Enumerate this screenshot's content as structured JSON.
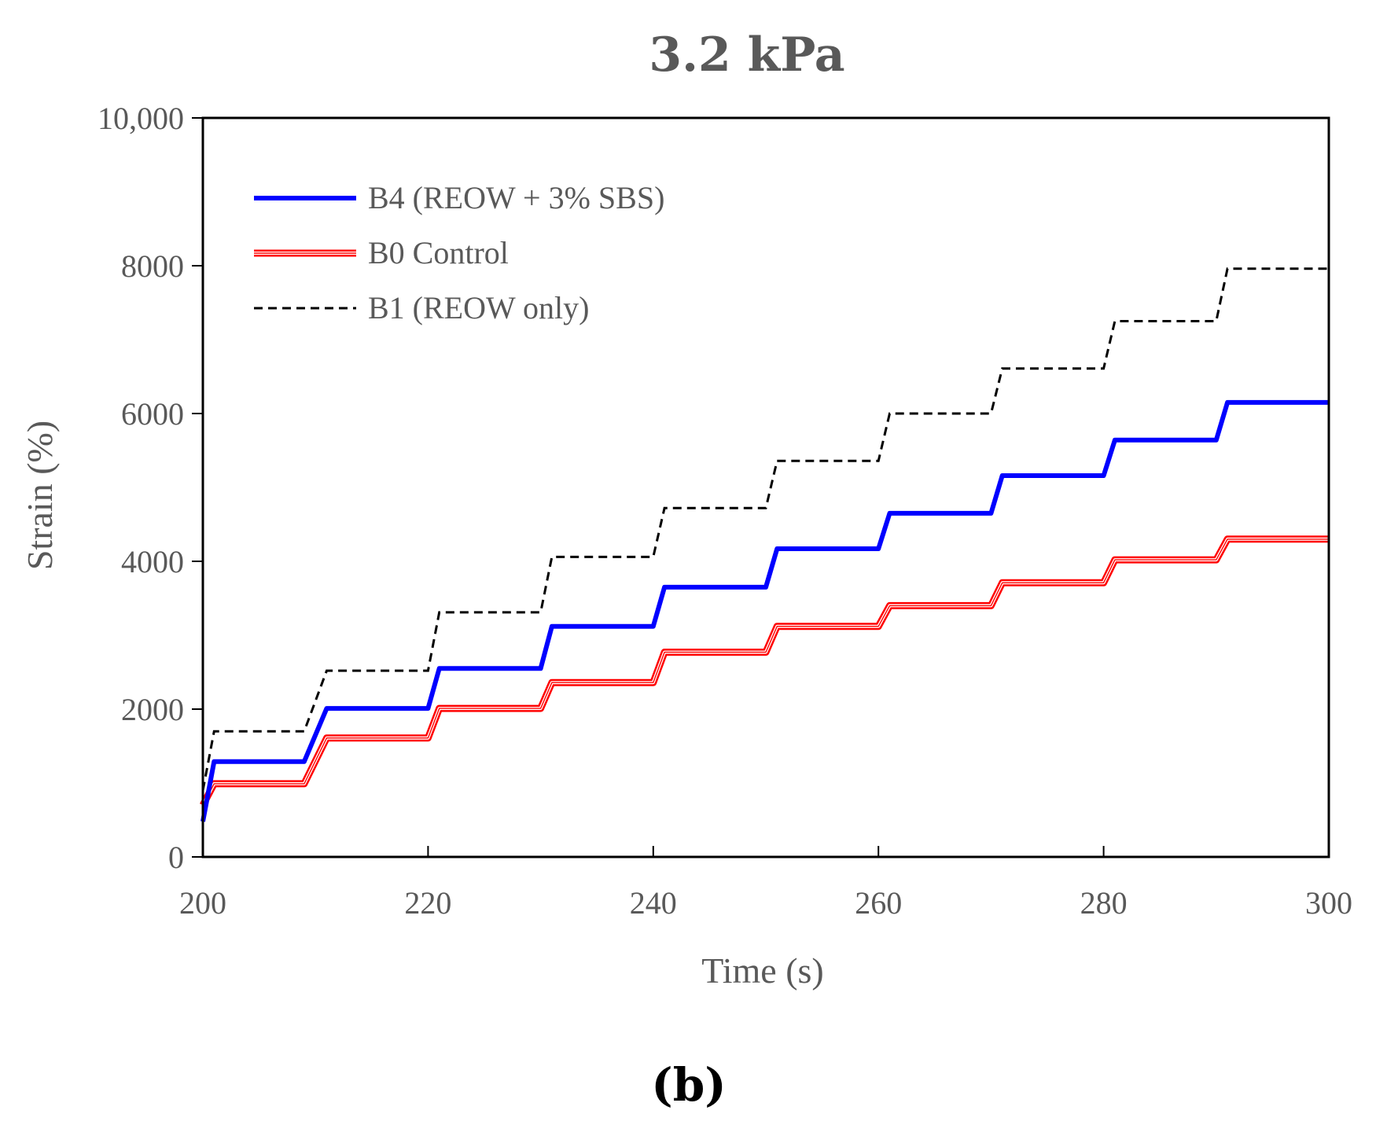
{
  "chart_data": {
    "type": "line",
    "title": "3.2 kPa",
    "panel_label": "(b)",
    "xlabel": "Time (s)",
    "ylabel": "Strain (%)",
    "xlim": [
      200,
      300
    ],
    "ylim": [
      0,
      10000
    ],
    "x_ticks": [
      200,
      220,
      240,
      260,
      280,
      300
    ],
    "y_ticks": [
      0,
      2000,
      4000,
      6000,
      8000,
      10000
    ],
    "x_tick_labels": [
      "200",
      "220",
      "240",
      "260",
      "280",
      "300"
    ],
    "y_tick_labels": [
      "0",
      "2000",
      "4000",
      "6000",
      "8000",
      "10,000"
    ],
    "legend_position": "top-left",
    "series": [
      {
        "name": "B4 (REOW + 3% SBS)",
        "color": "#0000ff",
        "style": "solid",
        "points": [
          [
            200,
            480
          ],
          [
            201,
            1290
          ],
          [
            209,
            1290
          ],
          [
            211,
            2010
          ],
          [
            220,
            2010
          ],
          [
            221,
            2550
          ],
          [
            230,
            2550
          ],
          [
            231,
            3120
          ],
          [
            240,
            3120
          ],
          [
            241,
            3650
          ],
          [
            250,
            3650
          ],
          [
            251,
            4170
          ],
          [
            260,
            4170
          ],
          [
            261,
            4650
          ],
          [
            270,
            4650
          ],
          [
            271,
            5160
          ],
          [
            280,
            5160
          ],
          [
            281,
            5640
          ],
          [
            290,
            5640
          ],
          [
            291,
            6150
          ],
          [
            300,
            6150
          ]
        ]
      },
      {
        "name": "B0 Control",
        "color": "#ff0000",
        "style": "triple",
        "points": [
          [
            200,
            700
          ],
          [
            201,
            990
          ],
          [
            209,
            990
          ],
          [
            211,
            1610
          ],
          [
            220,
            1610
          ],
          [
            221,
            2010
          ],
          [
            230,
            2010
          ],
          [
            231,
            2360
          ],
          [
            240,
            2360
          ],
          [
            241,
            2770
          ],
          [
            250,
            2770
          ],
          [
            251,
            3120
          ],
          [
            260,
            3120
          ],
          [
            261,
            3400
          ],
          [
            270,
            3400
          ],
          [
            271,
            3710
          ],
          [
            280,
            3710
          ],
          [
            281,
            4020
          ],
          [
            290,
            4020
          ],
          [
            291,
            4300
          ],
          [
            300,
            4300
          ]
        ]
      },
      {
        "name": "B1 (REOW only)",
        "color": "#000000",
        "style": "dashed",
        "points": [
          [
            200,
            900
          ],
          [
            201,
            1700
          ],
          [
            209,
            1700
          ],
          [
            211,
            2520
          ],
          [
            220,
            2520
          ],
          [
            221,
            3310
          ],
          [
            230,
            3310
          ],
          [
            231,
            4060
          ],
          [
            240,
            4060
          ],
          [
            241,
            4720
          ],
          [
            250,
            4720
          ],
          [
            251,
            5360
          ],
          [
            260,
            5360
          ],
          [
            261,
            6000
          ],
          [
            270,
            6000
          ],
          [
            271,
            6610
          ],
          [
            280,
            6610
          ],
          [
            281,
            7250
          ],
          [
            290,
            7250
          ],
          [
            291,
            7960
          ],
          [
            300,
            7960
          ]
        ]
      }
    ]
  }
}
